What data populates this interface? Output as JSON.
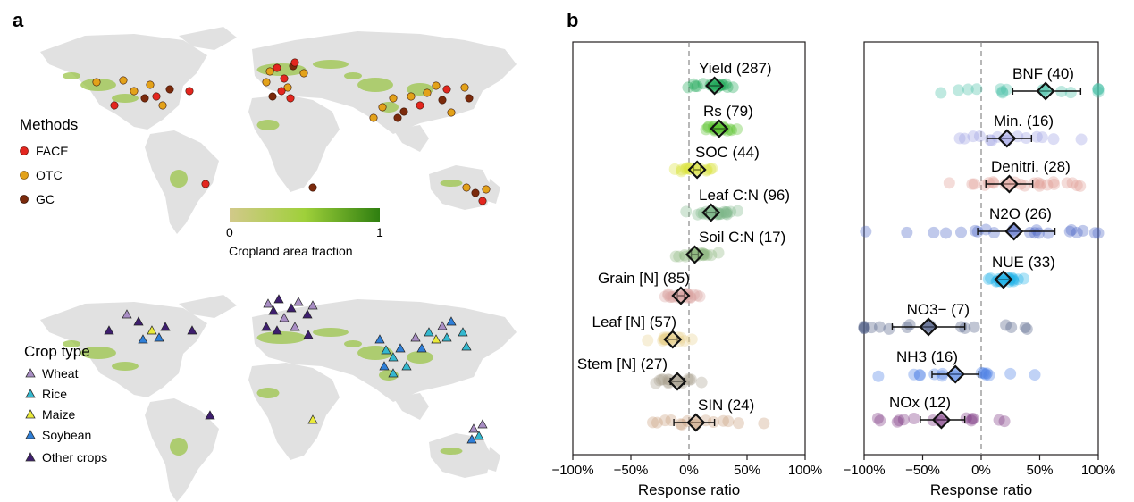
{
  "panels": {
    "a": "a",
    "b": "b"
  },
  "map_legend": {
    "methods_title": "Methods",
    "methods": [
      {
        "label": "FACE",
        "color": "#e3261f"
      },
      {
        "label": "OTC",
        "color": "#e3a21a"
      },
      {
        "label": "GC",
        "color": "#7b2a0c"
      }
    ],
    "colorbar": {
      "min_label": "0",
      "max_label": "1",
      "title": "Cropland area fraction",
      "color_low": "#c9c57a",
      "color_high": "#2f7f10"
    },
    "crop_title": "Crop type",
    "crops": [
      {
        "label": "Wheat",
        "color": "#a98ec4"
      },
      {
        "label": "Rice",
        "color": "#34b8cf"
      },
      {
        "label": "Maize",
        "color": "#eaea3a"
      },
      {
        "label": "Soybean",
        "color": "#2f7fd8"
      },
      {
        "label": "Other crops",
        "color": "#3e1e6e"
      }
    ]
  },
  "chart_data": [
    {
      "type": "scatter",
      "panel": "b-left",
      "xlabel": "Response ratio",
      "xlim": [
        -100,
        100
      ],
      "xticks": [
        "−100%",
        "−50%",
        "0%",
        "50%",
        "100%"
      ],
      "zero_line": true,
      "rows": [
        {
          "label": "Yield (287)",
          "mean": 22,
          "ci": [
            17,
            27
          ],
          "color": "#1fa85a"
        },
        {
          "label": "Rs (79)",
          "mean": 26,
          "ci": [
            21,
            31
          ],
          "color": "#58c22b"
        },
        {
          "label": "SOC (44)",
          "mean": 7,
          "ci": [
            4,
            10
          ],
          "color": "#d9e23a"
        },
        {
          "label": "Leaf C:N (96)",
          "mean": 19,
          "ci": [
            15,
            23
          ],
          "color": "#7fb88a"
        },
        {
          "label": "Soil C:N (17)",
          "mean": 5,
          "ci": [
            2,
            8
          ],
          "color": "#8fb880"
        },
        {
          "label": "Grain  [N] (85)",
          "mean": -7,
          "ci": [
            -10,
            -4
          ],
          "color": "#d9a3a0"
        },
        {
          "label": "Leaf  [N] (57)",
          "mean": -14,
          "ci": [
            -18,
            -10
          ],
          "color": "#e8d28f"
        },
        {
          "label": "Stem [N] (27)",
          "mean": -10,
          "ci": [
            -16,
            -4
          ],
          "color": "#a8a090"
        },
        {
          "label": "SIN (24)",
          "mean": 6,
          "ci": [
            -13,
            22
          ],
          "color": "#c99e7a"
        }
      ]
    },
    {
      "type": "scatter",
      "panel": "b-right",
      "xlabel": "Response ratio",
      "xlim": [
        -100,
        100
      ],
      "xticks": [
        "−100%",
        "−50%",
        "0%",
        "50%",
        "100%"
      ],
      "zero_line": true,
      "rows": [
        {
          "label": "BNF (40)",
          "mean": 55,
          "ci": [
            27,
            85
          ],
          "color": "#47c1a7"
        },
        {
          "label": "Min. (16)",
          "mean": 22,
          "ci": [
            5,
            43
          ],
          "color": "#9b9de3"
        },
        {
          "label": "Denitri. (28)",
          "mean": 24,
          "ci": [
            4,
            44
          ],
          "color": "#e09a92"
        },
        {
          "label": "N2O (26)",
          "mean": 28,
          "ci": [
            -3,
            63
          ],
          "color": "#4a63c6"
        },
        {
          "label": "NUE (33)",
          "mean": 19,
          "ci": [
            14,
            24
          ],
          "color": "#1fb3e8"
        },
        {
          "label": "NO3− (7)",
          "mean": -45,
          "ci": [
            -76,
            -14
          ],
          "color": "#4c5b85"
        },
        {
          "label": "NH3 (16)",
          "mean": -22,
          "ci": [
            -42,
            -2
          ],
          "color": "#4a7fe6"
        },
        {
          "label": "NOx (12)",
          "mean": -34,
          "ci": [
            -52,
            -14
          ],
          "color": "#7a3580"
        }
      ]
    }
  ]
}
